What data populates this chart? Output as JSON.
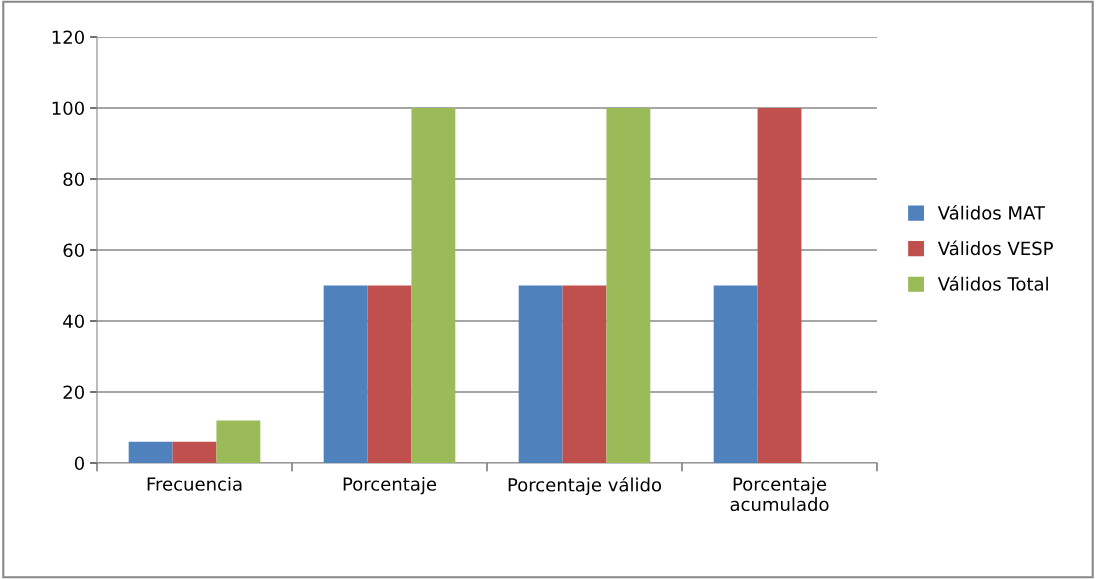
{
  "chart_data": {
    "type": "bar",
    "categories": [
      "Frecuencia",
      "Porcentaje",
      "Porcentaje válido",
      "Porcentaje\nacumulado"
    ],
    "series": [
      {
        "name": "Válidos MAT",
        "color": "#4f81bd",
        "values": [
          6,
          50,
          50,
          50
        ]
      },
      {
        "name": "Válidos VESP",
        "color": "#c0504d",
        "values": [
          6,
          50,
          50,
          100
        ]
      },
      {
        "name": "Válidos Total",
        "color": "#9bbb59",
        "values": [
          12,
          100,
          100,
          null
        ]
      }
    ],
    "ylim": [
      0,
      120
    ],
    "yticks": [
      0,
      20,
      40,
      60,
      80,
      100,
      120
    ],
    "grid": "y",
    "legend": "right"
  }
}
